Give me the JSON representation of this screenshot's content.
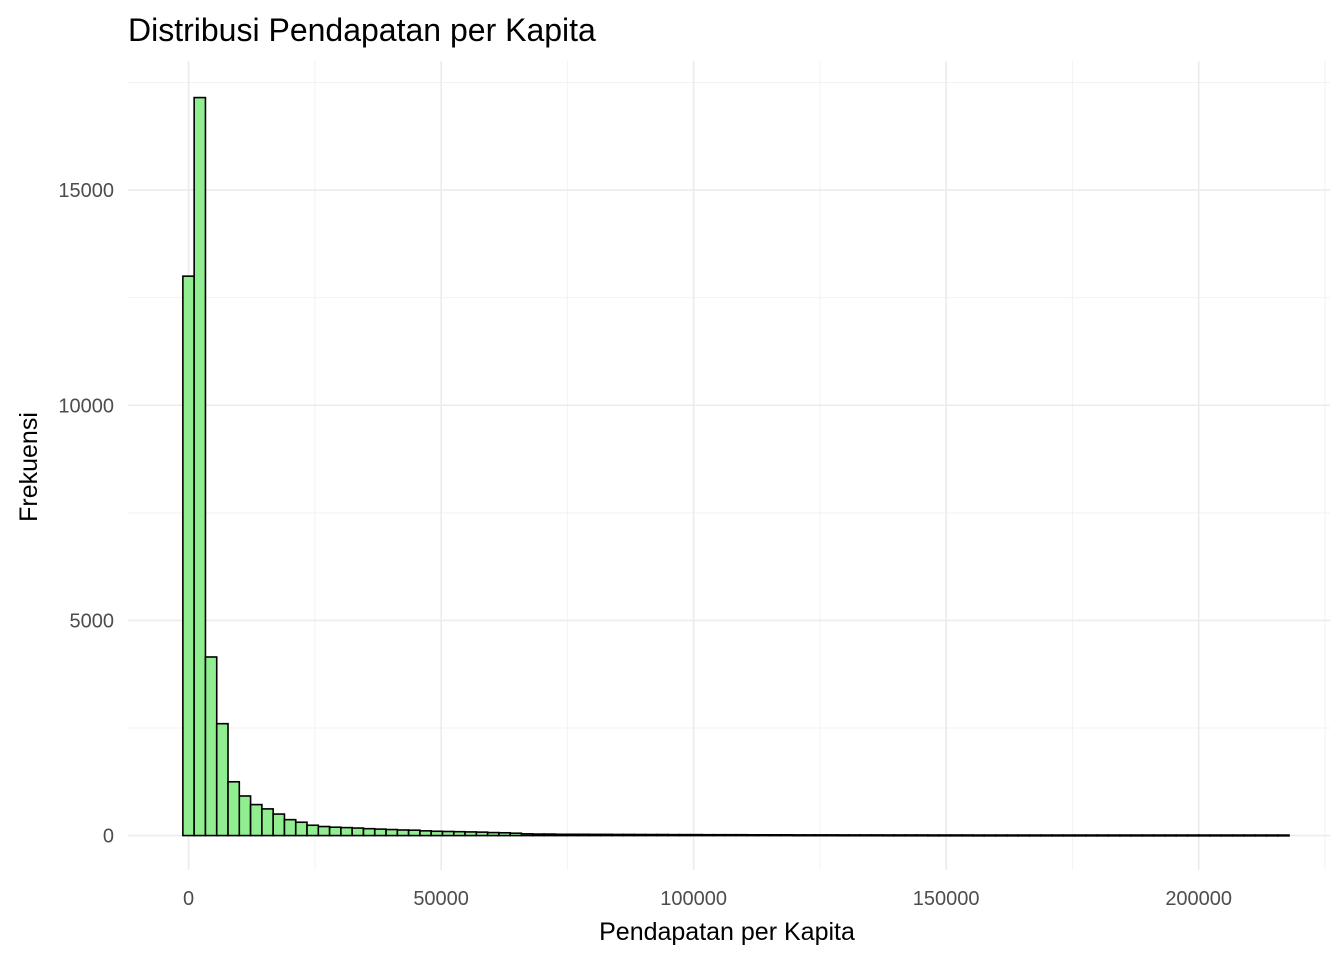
{
  "chart_data": {
    "type": "bar",
    "title": "Distribusi Pendapatan per Kapita",
    "xlabel": "Pendapatan per Kapita",
    "ylabel": "Frekuensi",
    "xlim": [
      -12000,
      226000
    ],
    "ylim": [
      -800,
      18000
    ],
    "x_ticks": [
      0,
      50000,
      100000,
      150000,
      200000
    ],
    "x_tick_labels": [
      "0",
      "50000",
      "100000",
      "150000",
      "200000"
    ],
    "y_ticks": [
      0,
      5000,
      10000,
      15000
    ],
    "y_tick_labels": [
      "0",
      "5000",
      "10000",
      "15000"
    ],
    "bin_start": -1137,
    "bin_width": 2235,
    "values": [
      13000,
      17150,
      4150,
      2600,
      1250,
      920,
      720,
      620,
      500,
      370,
      310,
      240,
      210,
      195,
      185,
      175,
      160,
      150,
      140,
      130,
      125,
      110,
      100,
      95,
      90,
      85,
      80,
      70,
      65,
      55,
      40,
      35,
      35,
      30,
      30,
      30,
      28,
      28,
      26,
      26,
      25,
      24,
      24,
      22,
      22,
      22,
      20,
      20,
      20,
      20,
      18,
      18,
      18,
      18,
      16,
      16,
      16,
      16,
      15,
      15,
      15,
      15,
      14,
      14,
      14,
      14,
      13,
      13,
      13,
      13,
      12,
      12,
      12,
      12,
      12,
      12,
      12,
      12,
      12,
      12,
      12,
      12,
      12,
      12,
      12,
      12,
      12,
      12,
      12,
      12,
      12,
      12,
      12,
      12,
      12,
      12,
      12,
      12
    ],
    "bar_color": "#90ee90",
    "bar_outline": "#000000",
    "grid": true,
    "legend": "none"
  }
}
